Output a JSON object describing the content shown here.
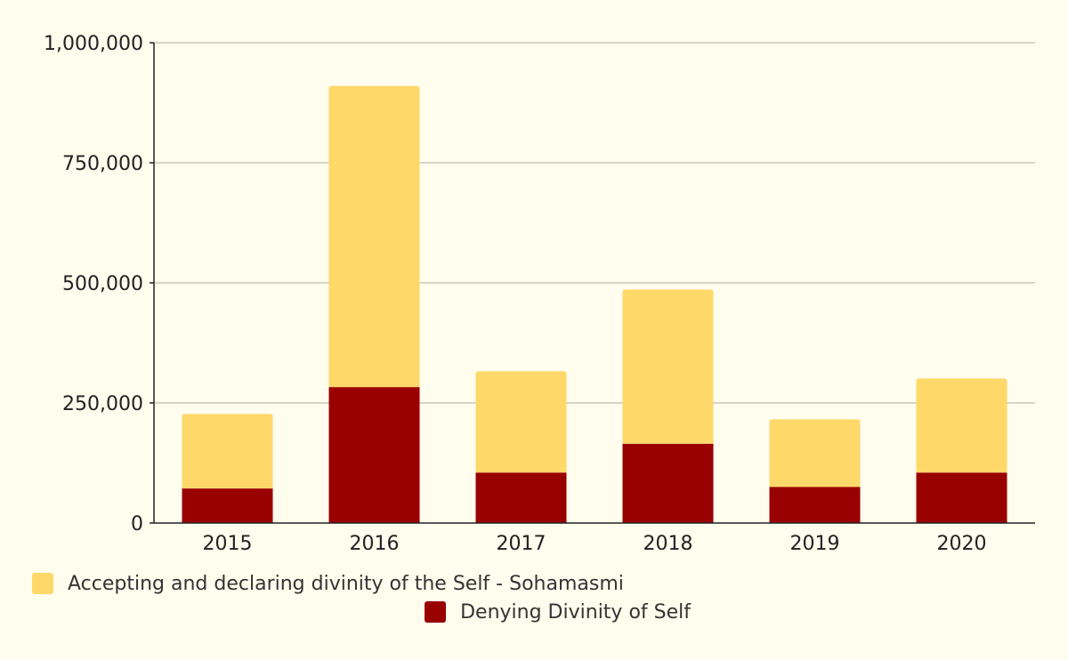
{
  "colors": {
    "background": "#fffdee",
    "gridline": "#c8c8b8",
    "axis": "#222222"
  },
  "chart_data": {
    "type": "bar",
    "stacked": true,
    "categories": [
      "2015",
      "2016",
      "2017",
      "2018",
      "2019",
      "2020"
    ],
    "series": [
      {
        "name": "Denying Divinity of Self",
        "color": "#990000",
        "values": [
          72000,
          283000,
          105000,
          165000,
          75000,
          105000
        ]
      },
      {
        "name": "Accepting and declaring divinity of the Self - Sohamasmi",
        "color": "#ffd86a",
        "values": [
          155000,
          627000,
          211000,
          321000,
          141000,
          196000
        ]
      }
    ],
    "ylim": [
      0,
      1000000
    ],
    "yticks": [
      0,
      250000,
      500000,
      750000,
      1000000
    ],
    "ytick_labels": [
      "0",
      "250,000",
      "500,000",
      "750,000",
      "1,000,000"
    ],
    "grid": true,
    "legend_position": "bottom-left"
  },
  "legend": {
    "items": [
      {
        "label": "Accepting and declaring divinity of the Self - Sohamasmi",
        "color": "#ffd86a"
      },
      {
        "label": "Denying Divinity of Self",
        "color": "#990000"
      }
    ]
  }
}
